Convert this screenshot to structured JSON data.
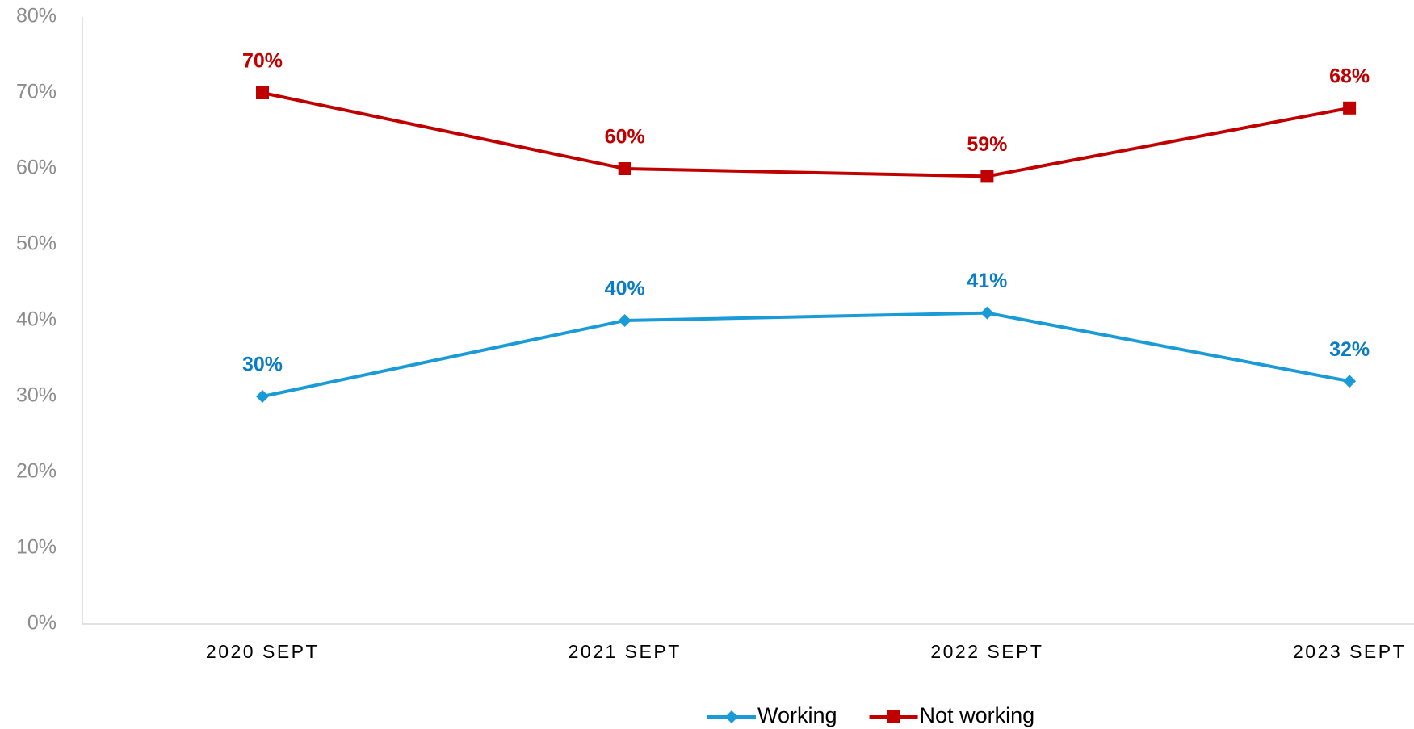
{
  "chart_data": {
    "type": "line",
    "categories": [
      "2020 SEPT",
      "2021 SEPT",
      "2022 SEPT",
      "2023 SEPT"
    ],
    "series": [
      {
        "name": "Working",
        "color": "#1a9ad6",
        "label_color": "#0b7dc5",
        "marker": "diamond",
        "values": [
          30,
          40,
          41,
          32
        ],
        "value_labels": [
          "30%",
          "40%",
          "41%",
          "32%"
        ]
      },
      {
        "name": "Not working",
        "color": "#c00000",
        "label_color": "#c00000",
        "marker": "square",
        "values": [
          70,
          60,
          59,
          68
        ],
        "value_labels": [
          "70%",
          "60%",
          "59%",
          "68%"
        ]
      }
    ],
    "ylim": [
      0,
      80
    ],
    "yticks": [
      {
        "value": 0,
        "label": "0%"
      },
      {
        "value": 10,
        "label": "10%"
      },
      {
        "value": 20,
        "label": "20%"
      },
      {
        "value": 30,
        "label": "30%"
      },
      {
        "value": 40,
        "label": "40%"
      },
      {
        "value": 50,
        "label": "50%"
      },
      {
        "value": 60,
        "label": "60%"
      },
      {
        "value": 70,
        "label": "70%"
      },
      {
        "value": 80,
        "label": "80%"
      }
    ],
    "grid": false,
    "legend": "bottom"
  }
}
